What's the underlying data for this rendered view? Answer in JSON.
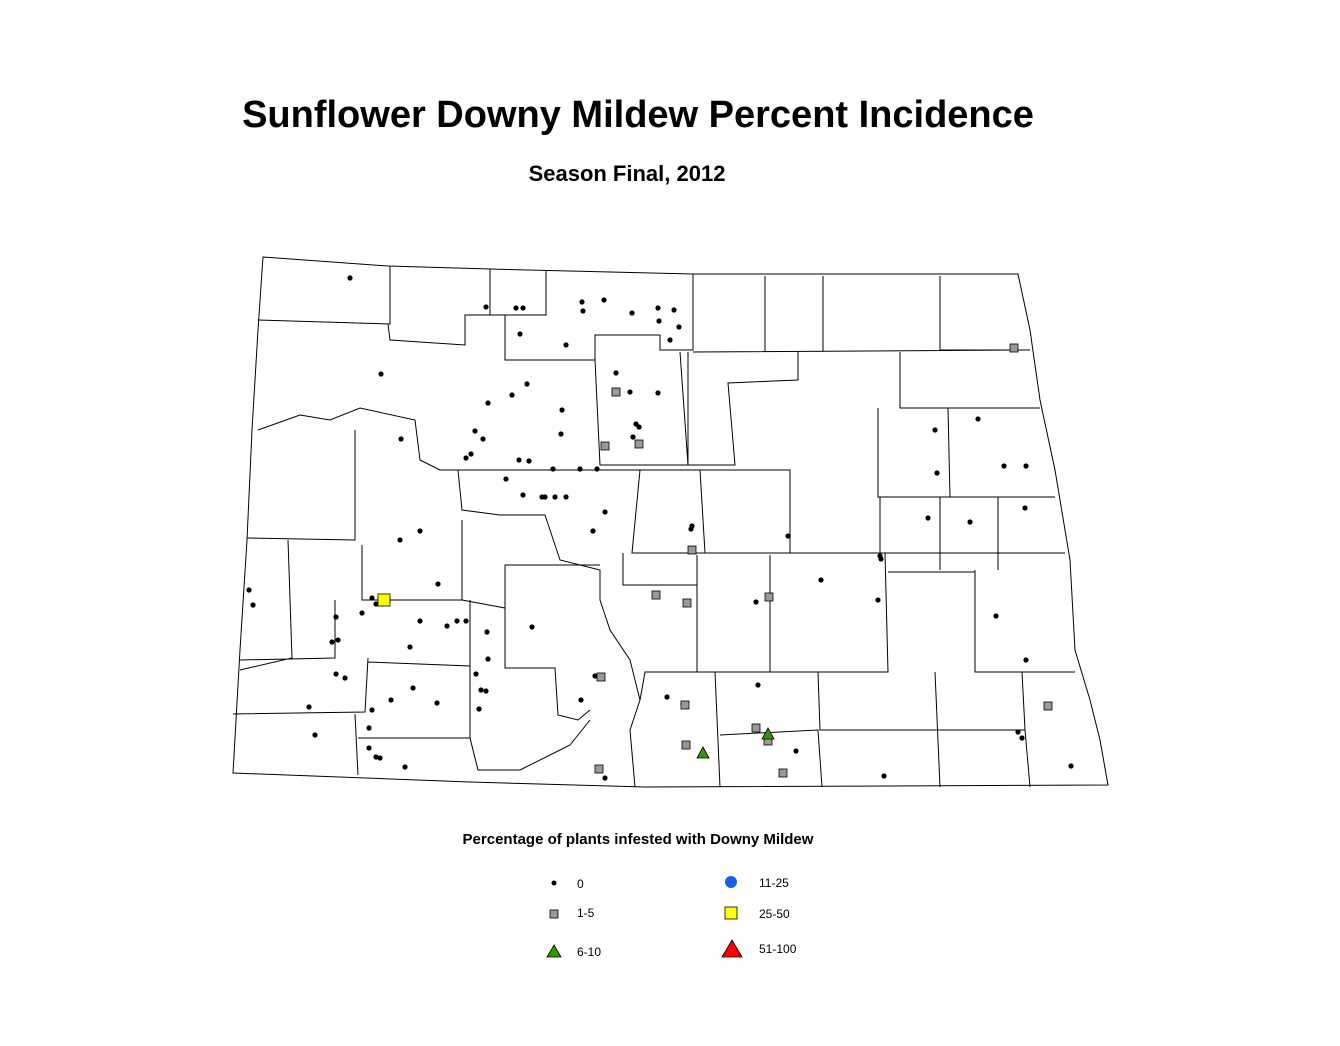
{
  "title": "Sunflower Downy Mildew Percent Incidence",
  "subtitle": "Season Final, 2012",
  "legend": {
    "title": "Percentage of plants infested with Downy Mildew",
    "items": [
      {
        "label": "0"
      },
      {
        "label": "1-5"
      },
      {
        "label": "6-10"
      },
      {
        "label": "11-25"
      },
      {
        "label": "25-50"
      },
      {
        "label": "51-100"
      }
    ]
  }
}
